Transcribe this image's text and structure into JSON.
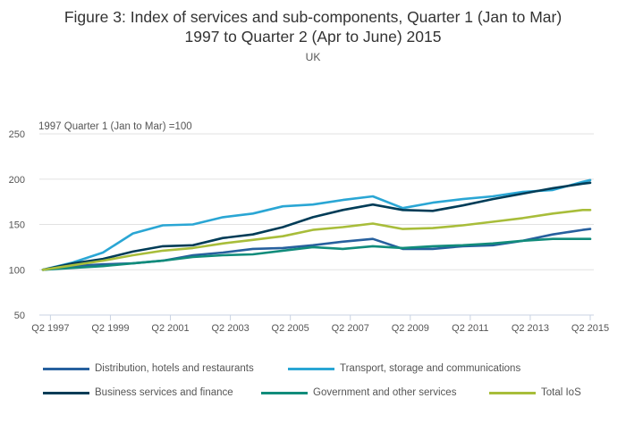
{
  "chart_data": {
    "type": "line",
    "title": "Figure 3: Index of services and sub-components, Quarter 1 (Jan to Mar) 1997 to Quarter 2 (Apr to June) 2015",
    "title_lines": [
      "Figure 3: Index of services and sub-components, Quarter 1 (Jan to Mar)",
      "1997 to Quarter 2 (Apr to June) 2015"
    ],
    "subtitle": "UK",
    "ylabel": "1997 Quarter 1 (Jan to Mar) =100",
    "xlabel": "",
    "ylim": [
      50,
      250
    ],
    "yticks": [
      50,
      100,
      150,
      200,
      250
    ],
    "x_range": [
      "Q1 1997",
      "Q2 2015"
    ],
    "xtick_labels": [
      "Q2 1997",
      "Q2 1999",
      "Q2 2001",
      "Q2 2003",
      "Q2 2005",
      "Q2 2007",
      "Q2 2009",
      "Q2 2011",
      "Q2 2013",
      "Q2 2015"
    ],
    "grid": true,
    "legend_position": "bottom",
    "x_note": "Quarterly series from Q1 1997 to Q2 2015; values below sampled every 4 quarters (Q1 of each year) plus final Q2 2015",
    "x": [
      "Q1 1997",
      "Q1 1998",
      "Q1 1999",
      "Q1 2000",
      "Q1 2001",
      "Q1 2002",
      "Q1 2003",
      "Q1 2004",
      "Q1 2005",
      "Q1 2006",
      "Q1 2007",
      "Q1 2008",
      "Q1 2009",
      "Q1 2010",
      "Q1 2011",
      "Q1 2012",
      "Q1 2013",
      "Q1 2014",
      "Q1 2015",
      "Q2 2015"
    ],
    "series": [
      {
        "name": "Distribution, hotels and restaurants",
        "color": "#27609e",
        "values": [
          100,
          104,
          106,
          107,
          110,
          116,
          119,
          123,
          124,
          127,
          131,
          134,
          123,
          123,
          126,
          127,
          132,
          139,
          144,
          145
        ]
      },
      {
        "name": "Transport, storage and communications",
        "color": "#2aa6d4",
        "values": [
          100,
          108,
          119,
          140,
          149,
          150,
          158,
          162,
          170,
          172,
          177,
          181,
          168,
          174,
          178,
          181,
          186,
          188,
          197,
          199
        ]
      },
      {
        "name": "Business services and finance",
        "color": "#003c57",
        "values": [
          100,
          107,
          112,
          120,
          126,
          127,
          135,
          139,
          147,
          158,
          166,
          172,
          166,
          165,
          171,
          178,
          184,
          190,
          195,
          196
        ]
      },
      {
        "name": "Government and other services",
        "color": "#118c7b",
        "values": [
          100,
          102,
          104,
          107,
          110,
          114,
          116,
          117,
          121,
          125,
          123,
          126,
          124,
          126,
          127,
          129,
          132,
          134,
          134,
          134
        ]
      },
      {
        "name": "Total IoS",
        "color": "#a8bd3a",
        "values": [
          100,
          105,
          110,
          116,
          121,
          124,
          129,
          133,
          137,
          144,
          147,
          151,
          145,
          146,
          149,
          153,
          157,
          162,
          166,
          166
        ]
      }
    ]
  },
  "legend": {
    "items": [
      {
        "label": "Distribution, hotels and restaurants",
        "color": "#27609e"
      },
      {
        "label": "Transport, storage and communications",
        "color": "#2aa6d4"
      },
      {
        "label": "Business services and finance",
        "color": "#003c57"
      },
      {
        "label": "Government and other services",
        "color": "#118c7b"
      },
      {
        "label": "Total IoS",
        "color": "#a8bd3a"
      }
    ]
  }
}
